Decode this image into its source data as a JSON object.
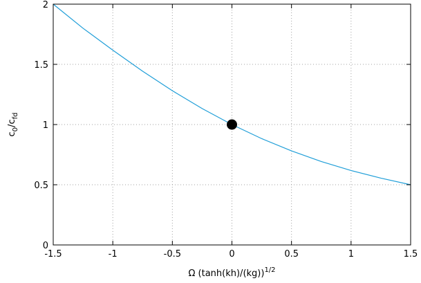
{
  "chart_data": {
    "type": "line",
    "title": "",
    "xlabel": {
      "base": "Ω (tanh(kh)/(kg))",
      "sup": "1/2"
    },
    "ylabel": {
      "base": "c",
      "sub1": "0",
      "mid": "/c",
      "sub2": "fd"
    },
    "xlim": [
      -1.5,
      1.5
    ],
    "ylim": [
      0,
      2
    ],
    "xticks": [
      -1.5,
      -1,
      -0.5,
      0,
      0.5,
      1,
      1.5
    ],
    "xtick_labels": [
      "-1.5",
      "-1",
      "-0.5",
      "0",
      "0.5",
      "1",
      "1.5"
    ],
    "yticks": [
      0,
      0.5,
      1,
      1.5,
      2
    ],
    "ytick_labels": [
      "0",
      "0.5",
      "1",
      "1.5",
      "2"
    ],
    "grid": true,
    "series": [
      {
        "color": "#1f9ed8",
        "x": [
          -1.5,
          -1.25,
          -1.0,
          -0.75,
          -0.5,
          -0.25,
          0.0,
          0.25,
          0.5,
          0.75,
          1.0,
          1.25,
          1.5
        ],
        "y": [
          2.0,
          1.8,
          1.618,
          1.443,
          1.281,
          1.133,
          1.0,
          0.883,
          0.781,
          0.693,
          0.618,
          0.555,
          0.5
        ]
      }
    ],
    "markers": [
      {
        "x": 0,
        "y": 1,
        "color": "#000000"
      }
    ]
  }
}
